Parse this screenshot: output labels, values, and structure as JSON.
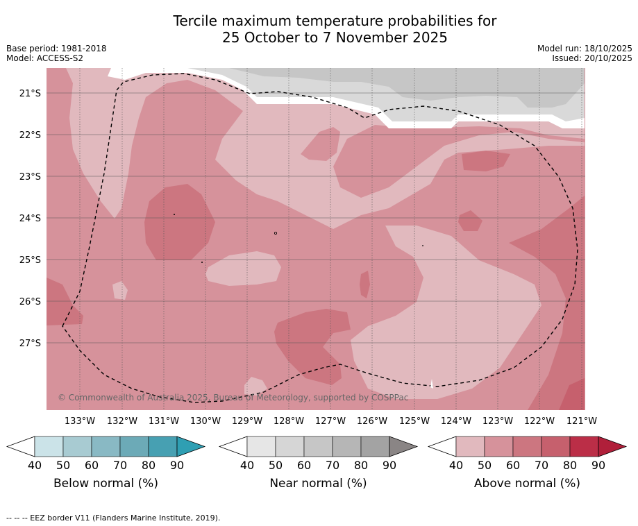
{
  "title_line1": "Tercile maximum temperature probabilities for",
  "title_line2": "25 October to 7 November 2025",
  "base_period": "Base period: 1981-2018",
  "model": "Model: ACCESS-S2",
  "model_run": "Model run: 18/10/2025",
  "issued": "Issued: 20/10/2025",
  "copyright": "© Commonwealth of Australia 2025, Bureau of Meteorology, supported by COSPPac",
  "lat_labels": [
    "21°S",
    "22°S",
    "23°S",
    "24°S",
    "25°S",
    "26°S",
    "27°S"
  ],
  "lon_labels": [
    "133°W",
    "132°W",
    "131°W",
    "130°W",
    "129°W",
    "128°W",
    "127°W",
    "126°W",
    "125°W",
    "124°W",
    "123°W",
    "122°W",
    "121°W"
  ],
  "colorbars": [
    {
      "label": "Below normal (%)",
      "ticks": [
        "40",
        "50",
        "60",
        "70",
        "80",
        "90"
      ],
      "colors": [
        "#ffffff",
        "#cbe3e8",
        "#a8cbd2",
        "#89b9c4",
        "#6caab7",
        "#47a0b2",
        "#2f9fb3"
      ]
    },
    {
      "label": "Near normal (%)",
      "ticks": [
        "40",
        "50",
        "60",
        "70",
        "80",
        "90"
      ],
      "colors": [
        "#ffffff",
        "#e6e6e6",
        "#d6d6d6",
        "#c6c6c6",
        "#b6b6b6",
        "#a3a3a3",
        "#8a8585"
      ]
    },
    {
      "label": "Above normal (%)",
      "ticks": [
        "40",
        "50",
        "60",
        "70",
        "80",
        "90"
      ],
      "colors": [
        "#ffffff",
        "#e1b9be",
        "#d6929b",
        "#cc7680",
        "#c6606d",
        "#bb2e47",
        "#b01f3a"
      ]
    }
  ],
  "footer": "-- -- -- EEZ border V11 (Flanders Marine Institute, 2019).",
  "colors": {
    "above50": "#e1b9be",
    "above60": "#d6929b",
    "above70": "#cc7680",
    "above80": "#c6606d",
    "near50": "#d9d9d9",
    "near60": "#c6c6c6"
  }
}
